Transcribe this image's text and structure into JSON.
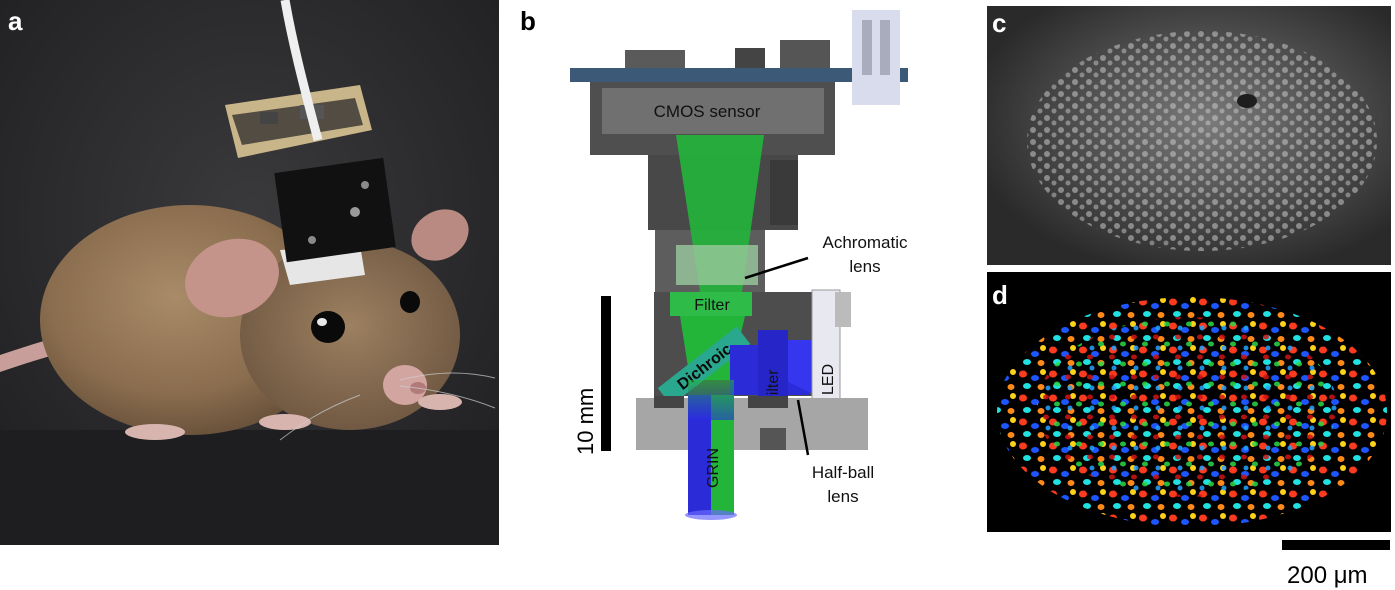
{
  "figure": {
    "panel_labels": {
      "a": "a",
      "b": "b",
      "c": "c",
      "d": "d"
    },
    "diagram_labels": {
      "cmos": "CMOS sensor",
      "achromatic_line1": "Achromatic",
      "achromatic_line2": "lens",
      "filter_top": "Filter",
      "dichroic": "Dichroic",
      "filter_side": "Filter",
      "led": "LED",
      "grin": "GRIN",
      "halfball_line1": "Half-ball",
      "halfball_line2": "lens",
      "scale_mm": "10 mm"
    },
    "scale_um": "200 μm"
  },
  "colors": {
    "background_photo": "#2c2c2e",
    "mount_black": "#111111",
    "pcb_beige": "#c9b58a",
    "pcb_blue": "#3c5a78",
    "housing_dark": "#4a4a4a",
    "housing_light": "#6d6d6d",
    "green_light": "#22b53a",
    "blue_light": "#2626e0",
    "segm_bg": "#000000"
  }
}
